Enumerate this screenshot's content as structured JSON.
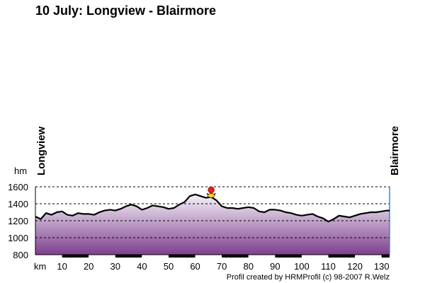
{
  "title": "10 July: Longview - Blairmore",
  "credit": "Profil created by HRMProfil (c) 98-2007 R.Welz",
  "colors": {
    "fill_top": "#f6f2f8",
    "fill_bottom": "#7e3f8f",
    "line": "#000000",
    "marker": "#e02020"
  },
  "chart_data": {
    "type": "area",
    "xlabel": "km",
    "ylabel": "hm",
    "start_label": "Longview",
    "end_label": "Blairmore",
    "xlim": [
      0,
      133
    ],
    "ylim": [
      800,
      1600
    ],
    "x_ticks": [
      10,
      20,
      30,
      40,
      50,
      60,
      70,
      80,
      90,
      100,
      110,
      120,
      130
    ],
    "y_ticks": [
      800,
      1000,
      1200,
      1400,
      1600
    ],
    "grid": "horizontal dashed",
    "marker": {
      "icon": "summit-marker-icon",
      "x": 66,
      "y": 1480
    },
    "x": [
      0,
      2,
      4,
      6,
      8,
      10,
      12,
      14,
      16,
      18,
      20,
      22,
      24,
      26,
      28,
      30,
      32,
      34,
      36,
      38,
      40,
      42,
      44,
      46,
      48,
      50,
      52,
      54,
      56,
      58,
      60,
      62,
      64,
      66,
      68,
      70,
      72,
      74,
      76,
      78,
      80,
      82,
      84,
      86,
      88,
      90,
      92,
      94,
      96,
      98,
      100,
      102,
      104,
      106,
      108,
      110,
      112,
      114,
      116,
      118,
      120,
      122,
      124,
      126,
      128,
      130,
      132,
      133
    ],
    "y": [
      1250,
      1220,
      1290,
      1270,
      1300,
      1310,
      1270,
      1260,
      1290,
      1280,
      1280,
      1270,
      1300,
      1320,
      1330,
      1320,
      1340,
      1370,
      1390,
      1370,
      1330,
      1350,
      1380,
      1370,
      1360,
      1340,
      1350,
      1390,
      1420,
      1490,
      1510,
      1490,
      1470,
      1480,
      1440,
      1370,
      1350,
      1350,
      1340,
      1350,
      1360,
      1350,
      1310,
      1300,
      1330,
      1330,
      1320,
      1300,
      1290,
      1270,
      1260,
      1270,
      1280,
      1250,
      1230,
      1190,
      1220,
      1260,
      1250,
      1240,
      1260,
      1280,
      1290,
      1300,
      1300,
      1310,
      1320,
      1320
    ]
  }
}
